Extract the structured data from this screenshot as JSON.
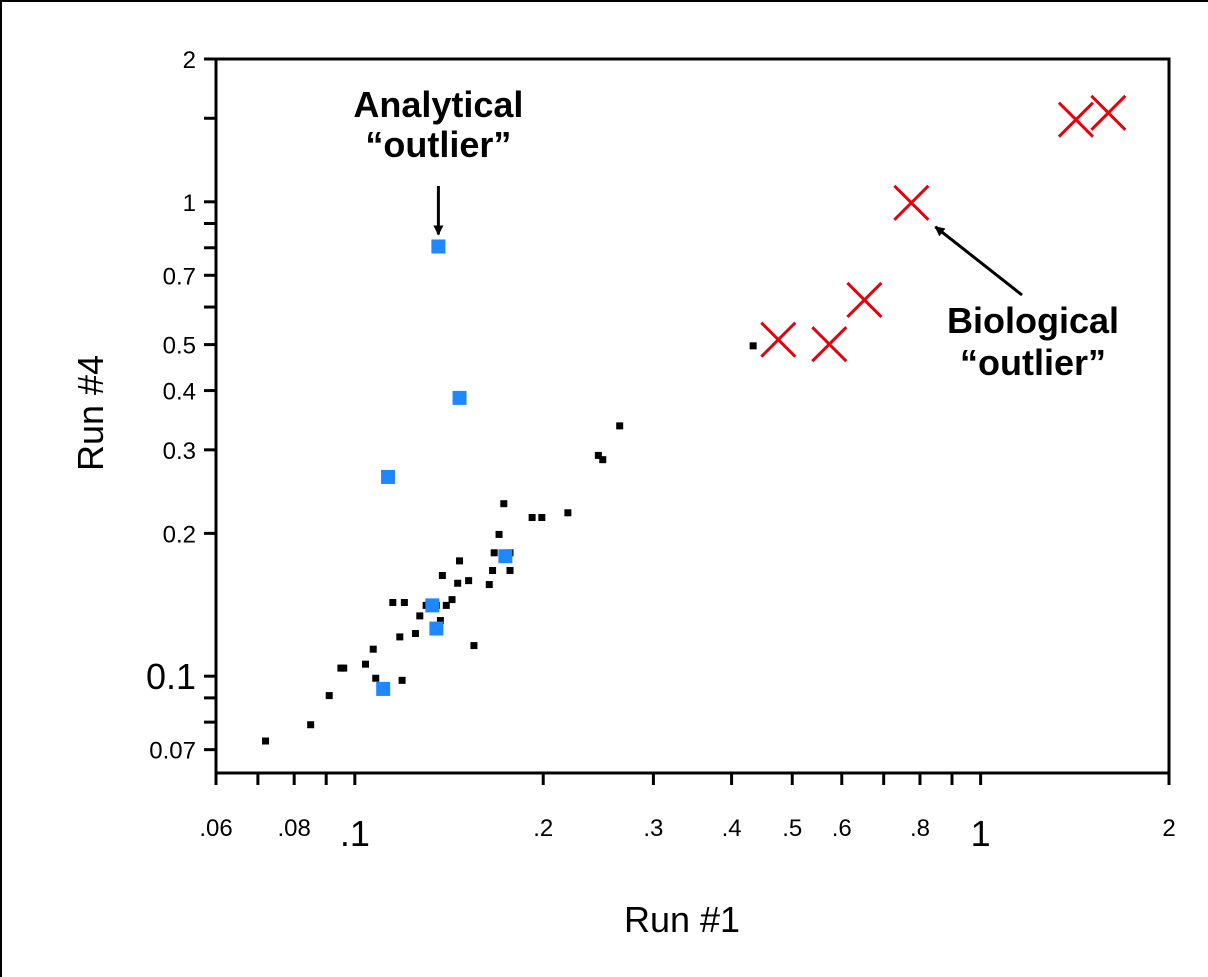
{
  "chart_data": {
    "type": "scatter",
    "xlabel": "Run #1",
    "ylabel": "Run #4",
    "xscale": "log",
    "yscale": "log",
    "xlim": [
      0.06,
      2.0
    ],
    "ylim": [
      0.0625,
      2.0
    ],
    "grid": false,
    "x_ticks": [
      {
        "value": 0.06,
        "label": ".06",
        "big": false
      },
      {
        "value": 0.08,
        "label": ".08",
        "big": false
      },
      {
        "value": 0.1,
        "label": ".1",
        "big": true
      },
      {
        "value": 0.2,
        "label": ".2",
        "big": false
      },
      {
        "value": 0.3,
        "label": ".3",
        "big": false
      },
      {
        "value": 0.4,
        "label": ".4",
        "big": false
      },
      {
        "value": 0.5,
        "label": ".5",
        "big": false
      },
      {
        "value": 0.6,
        "label": ".6",
        "big": false
      },
      {
        "value": 0.8,
        "label": ".8",
        "big": false
      },
      {
        "value": 1.0,
        "label": "1",
        "big": true
      },
      {
        "value": 2.0,
        "label": "2",
        "big": false
      }
    ],
    "x_minor_ticks": [
      0.07,
      0.09,
      0.7,
      0.9
    ],
    "y_ticks": [
      {
        "value": 2.0,
        "label": "2",
        "big": false
      },
      {
        "value": 1.0,
        "label": "1",
        "big": false
      },
      {
        "value": 0.7,
        "label": "0.7",
        "big": false
      },
      {
        "value": 0.5,
        "label": "0.5",
        "big": false
      },
      {
        "value": 0.4,
        "label": "0.4",
        "big": false
      },
      {
        "value": 0.3,
        "label": "0.3",
        "big": false
      },
      {
        "value": 0.2,
        "label": "0.2",
        "big": false
      },
      {
        "value": 0.1,
        "label": "0.1",
        "big": true
      },
      {
        "value": 0.07,
        "label": "0.07",
        "big": false
      }
    ],
    "y_minor_ticks": [
      1.5,
      0.9,
      0.8,
      0.6,
      0.09,
      0.08
    ],
    "series": [
      {
        "marker": "small-square",
        "color": "#000000",
        "points": [
          [
            0.072,
            0.073
          ],
          [
            0.085,
            0.079
          ],
          [
            0.091,
            0.091
          ],
          [
            0.095,
            0.104
          ],
          [
            0.096,
            0.104
          ],
          [
            0.104,
            0.106
          ],
          [
            0.107,
            0.114
          ],
          [
            0.108,
            0.099
          ],
          [
            0.115,
            0.143
          ],
          [
            0.118,
            0.121
          ],
          [
            0.119,
            0.098
          ],
          [
            0.12,
            0.143
          ],
          [
            0.125,
            0.123
          ],
          [
            0.127,
            0.134
          ],
          [
            0.13,
            0.141
          ],
          [
            0.135,
            0.141
          ],
          [
            0.138,
            0.163
          ],
          [
            0.14,
            0.141
          ],
          [
            0.143,
            0.145
          ],
          [
            0.146,
            0.157
          ],
          [
            0.147,
            0.175
          ],
          [
            0.137,
            0.131
          ],
          [
            0.152,
            0.159
          ],
          [
            0.155,
            0.116
          ],
          [
            0.164,
            0.156
          ],
          [
            0.166,
            0.167
          ],
          [
            0.167,
            0.182
          ],
          [
            0.17,
            0.199
          ],
          [
            0.173,
            0.231
          ],
          [
            0.177,
            0.167
          ],
          [
            0.177,
            0.182
          ],
          [
            0.192,
            0.216
          ],
          [
            0.199,
            0.216
          ],
          [
            0.219,
            0.221
          ],
          [
            0.245,
            0.292
          ],
          [
            0.249,
            0.286
          ],
          [
            0.265,
            0.337
          ],
          [
            0.433,
            0.497
          ]
        ]
      },
      {
        "marker": "square",
        "color": "#1f87ff",
        "points": [
          [
            0.136,
            0.805
          ],
          [
            0.147,
            0.386
          ],
          [
            0.113,
            0.263
          ],
          [
            0.174,
            0.179
          ],
          [
            0.133,
            0.141
          ],
          [
            0.135,
            0.126
          ],
          [
            0.111,
            0.094
          ]
        ]
      },
      {
        "marker": "x",
        "color": "#e8000b",
        "points": [
          [
            0.475,
            0.512
          ],
          [
            0.573,
            0.501
          ],
          [
            0.652,
            0.621
          ],
          [
            0.775,
            0.995
          ],
          [
            1.42,
            1.49
          ],
          [
            1.6,
            1.54
          ]
        ]
      }
    ],
    "annotations": [
      {
        "text_lines": [
          "Analytical",
          "“outlier”"
        ],
        "target": [
          0.136,
          0.805
        ]
      },
      {
        "text_lines": [
          "Biological",
          "“outlier”"
        ],
        "target": [
          0.775,
          0.995
        ]
      }
    ]
  }
}
